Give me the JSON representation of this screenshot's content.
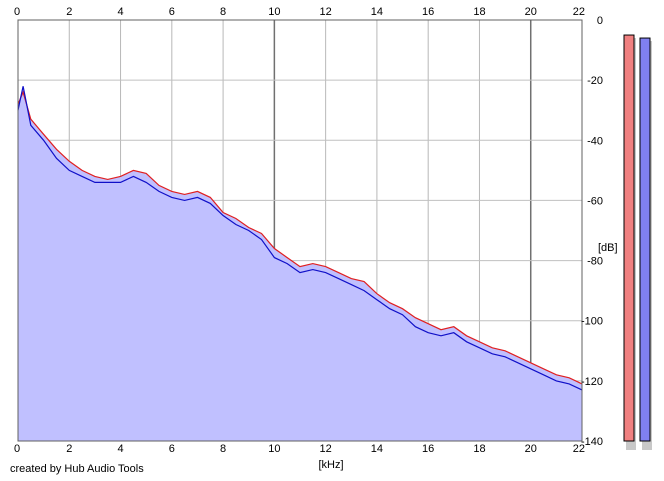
{
  "credit": "created by Hub Audio Tools",
  "chart_data": {
    "type": "area",
    "xlabel": "[kHz]",
    "ylabel": "[dB]",
    "xlim": [
      0,
      22
    ],
    "ylim": [
      -140,
      0
    ],
    "x_ticks": [
      0,
      2,
      4,
      6,
      8,
      10,
      12,
      14,
      16,
      18,
      20,
      22
    ],
    "y_ticks": [
      0,
      -20,
      -40,
      -60,
      -80,
      -100,
      -120,
      -140
    ],
    "grid": true,
    "series": [
      {
        "color": "#e02020",
        "x": [
          0,
          0.2,
          0.5,
          1,
          1.5,
          2,
          2.5,
          3,
          3.5,
          4,
          4.5,
          5,
          5.5,
          6,
          6.5,
          7,
          7.5,
          8,
          8.5,
          9,
          9.5,
          10,
          10.5,
          11,
          11.5,
          12,
          12.5,
          13,
          13.5,
          14,
          14.5,
          15,
          15.5,
          16,
          16.5,
          17,
          17.5,
          18,
          18.5,
          19,
          19.5,
          20,
          20.5,
          21,
          21.5,
          22
        ],
        "values": [
          -28,
          -24,
          -33,
          -38,
          -43,
          -47,
          -50,
          -52,
          -53,
          -52,
          -50,
          -51,
          -55,
          -57,
          -58,
          -57,
          -59,
          -64,
          -66,
          -69,
          -71,
          -76,
          -79,
          -82,
          -81,
          -82,
          -84,
          -86,
          -87,
          -91,
          -94,
          -96,
          -99,
          -101,
          -103,
          -102,
          -105,
          -107,
          -109,
          -110,
          -112,
          -114,
          -116,
          -118,
          -119,
          -121
        ]
      },
      {
        "color": "#1010c8",
        "x": [
          0,
          0.2,
          0.5,
          1,
          1.5,
          2,
          2.5,
          3,
          3.5,
          4,
          4.5,
          5,
          5.5,
          6,
          6.5,
          7,
          7.5,
          8,
          8.5,
          9,
          9.5,
          10,
          10.5,
          11,
          11.5,
          12,
          12.5,
          13,
          13.5,
          14,
          14.5,
          15,
          15.5,
          16,
          16.5,
          17,
          17.5,
          18,
          18.5,
          19,
          19.5,
          20,
          20.5,
          21,
          21.5,
          22
        ],
        "values": [
          -30,
          -22,
          -35,
          -40,
          -46,
          -50,
          -52,
          -54,
          -54,
          -54,
          -52,
          -54,
          -57,
          -59,
          -60,
          -59,
          -61,
          -65,
          -68,
          -70,
          -73,
          -79,
          -81,
          -84,
          -83,
          -84,
          -86,
          -88,
          -90,
          -93,
          -96,
          -98,
          -102,
          -104,
          -105,
          -104,
          -107,
          -109,
          -111,
          -112,
          -114,
          -116,
          -118,
          -120,
          -121,
          -123
        ]
      }
    ],
    "meter": {
      "fill_colors": [
        "#f08080",
        "#8080f0"
      ],
      "levels_db": [
        -5,
        -6
      ]
    }
  }
}
